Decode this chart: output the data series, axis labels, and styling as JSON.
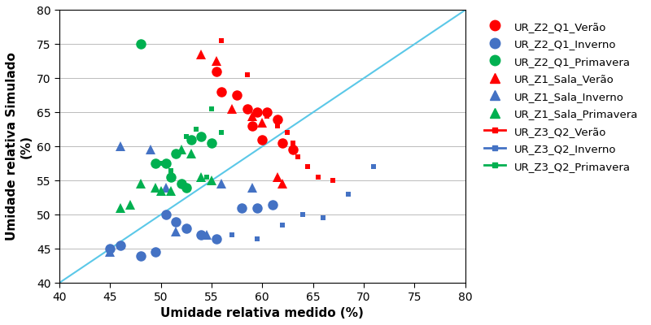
{
  "xlabel": "Umidade relativa medido (%)",
  "ylabel": "Umidade relativa Simulado\n(%)",
  "xlim": [
    40,
    80
  ],
  "ylim": [
    40,
    80
  ],
  "xticks": [
    40,
    45,
    50,
    55,
    60,
    65,
    70,
    75,
    80
  ],
  "yticks": [
    40,
    45,
    50,
    55,
    60,
    65,
    70,
    75,
    80
  ],
  "diag_line_color": "#5BC8E8",
  "background_color": "#ffffff",
  "series": [
    {
      "label": "UR_Z2_Q1_Verão",
      "color": "#FF0000",
      "marker": "o",
      "markersize": 9,
      "x": [
        55.5,
        56.0,
        57.5,
        58.5,
        59.5,
        60.5,
        59.0,
        60.0,
        62.0,
        63.0,
        61.5
      ],
      "y": [
        71.0,
        68.0,
        67.5,
        65.5,
        65.0,
        65.0,
        63.0,
        61.0,
        60.5,
        59.5,
        64.0
      ]
    },
    {
      "label": "UR_Z2_Q1_Inverno",
      "color": "#4472C4",
      "marker": "o",
      "markersize": 9,
      "x": [
        45.0,
        46.0,
        48.0,
        49.5,
        50.5,
        51.5,
        52.5,
        54.0,
        55.5,
        58.0,
        59.5,
        61.0
      ],
      "y": [
        45.0,
        45.5,
        44.0,
        44.5,
        50.0,
        49.0,
        48.0,
        47.0,
        46.5,
        51.0,
        51.0,
        51.5
      ]
    },
    {
      "label": "UR_Z2_Q1_Primavera",
      "color": "#00B050",
      "marker": "o",
      "markersize": 9,
      "x": [
        48.0,
        49.5,
        50.5,
        51.0,
        52.0,
        53.0,
        54.0,
        55.0,
        51.5,
        52.5
      ],
      "y": [
        75.0,
        57.5,
        57.5,
        55.5,
        54.5,
        61.0,
        61.5,
        60.5,
        59.0,
        54.0
      ]
    },
    {
      "label": "UR_Z1_Sala_Verão",
      "color": "#FF0000",
      "marker": "^",
      "markersize": 9,
      "x": [
        54.0,
        55.5,
        57.0,
        59.0,
        60.0,
        61.5,
        62.0
      ],
      "y": [
        73.5,
        72.5,
        65.5,
        64.5,
        63.5,
        55.5,
        54.5
      ]
    },
    {
      "label": "UR_Z1_Sala_Inverno",
      "color": "#4472C4",
      "marker": "^",
      "markersize": 9,
      "x": [
        45.0,
        46.0,
        49.0,
        50.5,
        51.5,
        54.5,
        56.0,
        59.0
      ],
      "y": [
        44.5,
        60.0,
        59.5,
        54.0,
        47.5,
        47.0,
        54.5,
        54.0
      ]
    },
    {
      "label": "UR_Z1_Sala_Primavera",
      "color": "#00B050",
      "marker": "^",
      "markersize": 9,
      "x": [
        46.0,
        47.0,
        48.0,
        49.5,
        50.0,
        51.0,
        52.0,
        53.0,
        54.0,
        55.0
      ],
      "y": [
        51.0,
        51.5,
        54.5,
        54.0,
        53.5,
        53.5,
        59.5,
        59.0,
        55.5,
        55.0
      ]
    },
    {
      "label": "UR_Z3_Q2_Verão",
      "color": "#FF0000",
      "marker": "s",
      "markersize": 5,
      "x": [
        56.0,
        58.5,
        60.5,
        61.5,
        62.5,
        63.0,
        63.5,
        64.5,
        65.5,
        67.0
      ],
      "y": [
        75.5,
        70.5,
        64.5,
        63.0,
        62.0,
        60.5,
        58.5,
        57.0,
        55.5,
        55.0
      ]
    },
    {
      "label": "UR_Z3_Q2_Inverno",
      "color": "#4472C4",
      "marker": "s",
      "markersize": 5,
      "x": [
        57.0,
        59.5,
        62.0,
        64.0,
        66.0,
        68.5,
        71.0
      ],
      "y": [
        47.0,
        46.5,
        48.5,
        50.0,
        49.5,
        53.0,
        57.0
      ]
    },
    {
      "label": "UR_Z3_Q2_Primavera",
      "color": "#00B050",
      "marker": "s",
      "markersize": 5,
      "x": [
        50.0,
        51.0,
        52.5,
        53.5,
        55.0,
        56.0,
        54.5
      ],
      "y": [
        57.5,
        56.5,
        61.5,
        62.5,
        65.5,
        62.0,
        55.5
      ]
    }
  ]
}
